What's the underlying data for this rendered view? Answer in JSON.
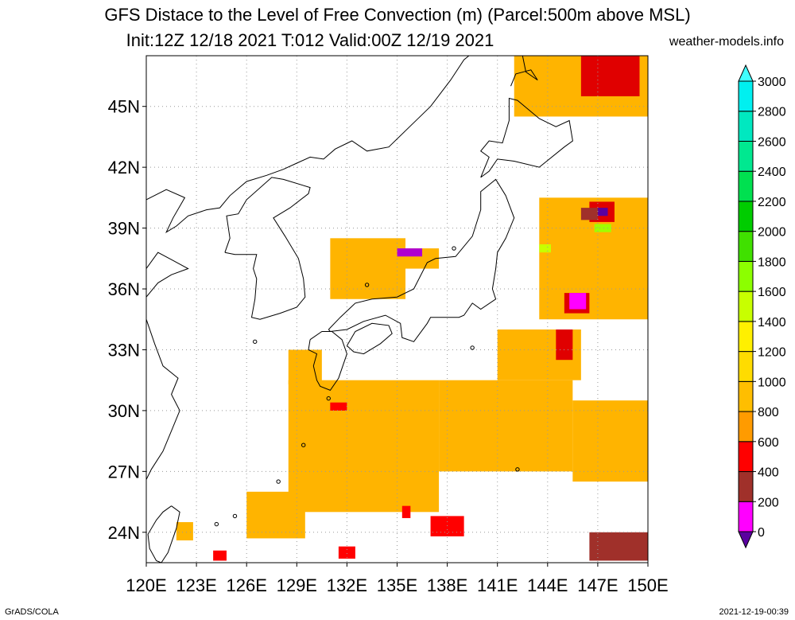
{
  "title": "GFS Distace to the Level of Free Convection (m) (Parcel:500m above MSL)",
  "subtitle": "Init:12Z 12/18 2021 T:012 Valid:00Z 12/19 2021",
  "credit": "weather-models.info",
  "footer_left": "GrADS/COLA",
  "footer_right": "2021-12-19-00:39",
  "map": {
    "lon_range": [
      120,
      150
    ],
    "lat_range": [
      22.5,
      47.5
    ],
    "lat_labels": [
      {
        "lat": 45,
        "label": "45N"
      },
      {
        "lat": 42,
        "label": "42N"
      },
      {
        "lat": 39,
        "label": "39N"
      },
      {
        "lat": 36,
        "label": "36N"
      },
      {
        "lat": 33,
        "label": "33N"
      },
      {
        "lat": 30,
        "label": "30N"
      },
      {
        "lat": 27,
        "label": "27N"
      },
      {
        "lat": 24,
        "label": "24N"
      }
    ],
    "lon_labels": [
      {
        "lon": 120,
        "label": "120E"
      },
      {
        "lon": 123,
        "label": "123E"
      },
      {
        "lon": 126,
        "label": "126E"
      },
      {
        "lon": 129,
        "label": "129E"
      },
      {
        "lon": 132,
        "label": "132E"
      },
      {
        "lon": 135,
        "label": "135E"
      },
      {
        "lon": 138,
        "label": "138E"
      },
      {
        "lon": 141,
        "label": "141E"
      },
      {
        "lon": 144,
        "label": "144E"
      },
      {
        "lon": 147,
        "label": "147E"
      },
      {
        "lon": 150,
        "label": "150E"
      }
    ]
  },
  "colorbar": {
    "levels": [
      "0",
      "200",
      "400",
      "600",
      "800",
      "1000",
      "1200",
      "1400",
      "1600",
      "1800",
      "2000",
      "2200",
      "2400",
      "2600",
      "2800",
      "3000"
    ],
    "colors": [
      "#5a00a0",
      "#ff00ff",
      "#a0302a",
      "#ff0000",
      "#ff9b00",
      "#ffbe00",
      "#ffdc00",
      "#fff000",
      "#c8ff00",
      "#8cff00",
      "#40e000",
      "#00cc00",
      "#00e050",
      "#00e890",
      "#00e8c0",
      "#00f0f0",
      "#40ffff"
    ]
  },
  "data_regions": [
    {
      "name": "south-band-west",
      "lon": [
        128.5,
        137.5
      ],
      "lat": [
        25.0,
        31.5
      ],
      "color": "#ffb400"
    },
    {
      "name": "south-band-central",
      "lon": [
        137.5,
        145.5
      ],
      "lat": [
        27.0,
        31.5
      ],
      "color": "#ffb400"
    },
    {
      "name": "south-band-east",
      "lon": [
        145.5,
        150.0
      ],
      "lat": [
        26.5,
        30.5
      ],
      "color": "#ffb400"
    },
    {
      "name": "south-band-tail",
      "lon": [
        126.0,
        129.5
      ],
      "lat": [
        23.7,
        26.0
      ],
      "color": "#ffb400"
    },
    {
      "name": "east-of-japan",
      "lon": [
        141.0,
        146.0
      ],
      "lat": [
        31.5,
        34.0
      ],
      "color": "#ffb400"
    },
    {
      "name": "east-pacific-north",
      "lon": [
        143.5,
        150.0
      ],
      "lat": [
        34.5,
        40.5
      ],
      "color": "#ffb400"
    },
    {
      "name": "sea-of-japan",
      "lon": [
        131.0,
        135.5
      ],
      "lat": [
        35.5,
        38.5
      ],
      "color": "#ffb400"
    },
    {
      "name": "sea-of-japan-east",
      "lon": [
        135.0,
        137.5
      ],
      "lat": [
        37.0,
        38.0
      ],
      "color": "#ffb400"
    },
    {
      "name": "kyushu-south",
      "lon": [
        128.5,
        130.5
      ],
      "lat": [
        31.3,
        33.0
      ],
      "color": "#ffb400"
    },
    {
      "name": "taiwan-east",
      "lon": [
        121.8,
        122.8
      ],
      "lat": [
        23.6,
        24.5
      ],
      "color": "#ffb400"
    },
    {
      "name": "red-core-1",
      "lon": [
        137.0,
        139.0
      ],
      "lat": [
        23.8,
        24.8
      ],
      "color": "#ff0000"
    },
    {
      "name": "red-core-2",
      "lon": [
        135.3,
        135.8
      ],
      "lat": [
        24.7,
        25.3
      ],
      "color": "#ff0000"
    },
    {
      "name": "red-core-3",
      "lon": [
        144.5,
        145.5
      ],
      "lat": [
        32.5,
        34.0
      ],
      "color": "#e00000"
    },
    {
      "name": "red-core-4",
      "lon": [
        146.5,
        148.0
      ],
      "lat": [
        39.3,
        40.3
      ],
      "color": "#e00000"
    },
    {
      "name": "red-core-5",
      "lon": [
        145.0,
        146.5
      ],
      "lat": [
        34.8,
        35.8
      ],
      "color": "#e00000"
    },
    {
      "name": "red-core-6",
      "lon": [
        131.5,
        132.5
      ],
      "lat": [
        22.7,
        23.3
      ],
      "color": "#ff0000"
    },
    {
      "name": "red-core-7",
      "lon": [
        124.0,
        124.8
      ],
      "lat": [
        22.6,
        23.1
      ],
      "color": "#ff0000"
    },
    {
      "name": "red-core-8",
      "lon": [
        146.5,
        148.0
      ],
      "lat": [
        46.0,
        46.7
      ],
      "color": "#ff0000"
    },
    {
      "name": "red-core-9",
      "lon": [
        131.0,
        132.0
      ],
      "lat": [
        30.0,
        30.4
      ],
      "color": "#ff0000"
    },
    {
      "name": "brown-core-1",
      "lon": [
        146.5,
        150.0
      ],
      "lat": [
        22.6,
        24.0
      ],
      "color": "#a0302a"
    },
    {
      "name": "brown-core-2",
      "lon": [
        146.0,
        147.0
      ],
      "lat": [
        39.4,
        40.0
      ],
      "color": "#a0302a"
    },
    {
      "name": "magenta-core-1",
      "lon": [
        145.3,
        146.3
      ],
      "lat": [
        35.0,
        35.8
      ],
      "color": "#ff00ff"
    },
    {
      "name": "magenta-core-2",
      "lon": [
        135.0,
        136.5
      ],
      "lat": [
        37.6,
        38.0
      ],
      "color": "#b000d0"
    },
    {
      "name": "purple-core-1",
      "lon": [
        147.0,
        147.6
      ],
      "lat": [
        39.6,
        40.0
      ],
      "color": "#5a00a0"
    },
    {
      "name": "green-core-1",
      "lon": [
        146.8,
        147.8
      ],
      "lat": [
        38.8,
        39.2
      ],
      "color": "#a0ff00"
    },
    {
      "name": "green-core-2",
      "lon": [
        143.5,
        144.2
      ],
      "lat": [
        37.8,
        38.2
      ],
      "color": "#c8ff00"
    },
    {
      "name": "hokkaido-coast-1",
      "lon": [
        142.0,
        150.0
      ],
      "lat": [
        44.5,
        47.5
      ],
      "color": "#ffb400"
    },
    {
      "name": "hokkaido-coast-red",
      "lon": [
        146.0,
        149.5
      ],
      "lat": [
        45.5,
        47.5
      ],
      "color": "#e00000"
    }
  ],
  "coastlines": [
    {
      "name": "honshu",
      "points": [
        [
          130.9,
          34.0
        ],
        [
          131.6,
          34.6
        ],
        [
          132.5,
          35.3
        ],
        [
          133.5,
          35.5
        ],
        [
          135.0,
          35.6
        ],
        [
          136.0,
          36.0
        ],
        [
          136.8,
          37.3
        ],
        [
          137.3,
          37.5
        ],
        [
          138.5,
          37.6
        ],
        [
          139.5,
          38.6
        ],
        [
          140.0,
          39.9
        ],
        [
          140.0,
          40.8
        ],
        [
          140.9,
          41.4
        ],
        [
          141.5,
          40.6
        ],
        [
          142.0,
          39.5
        ],
        [
          141.5,
          38.5
        ],
        [
          141.0,
          37.8
        ],
        [
          140.9,
          37.0
        ],
        [
          140.7,
          36.0
        ],
        [
          140.9,
          35.5
        ],
        [
          140.0,
          35.0
        ],
        [
          139.5,
          35.3
        ],
        [
          139.0,
          34.7
        ],
        [
          138.7,
          34.6
        ],
        [
          138.0,
          34.6
        ],
        [
          137.0,
          34.6
        ],
        [
          136.8,
          34.3
        ],
        [
          136.0,
          33.4
        ],
        [
          135.3,
          33.6
        ],
        [
          135.2,
          34.3
        ],
        [
          134.3,
          34.7
        ],
        [
          133.0,
          34.4
        ],
        [
          132.0,
          34.0
        ],
        [
          131.0,
          33.9
        ],
        [
          130.9,
          34.0
        ]
      ]
    },
    {
      "name": "hokkaido",
      "points": [
        [
          140.0,
          41.5
        ],
        [
          140.5,
          42.5
        ],
        [
          140.0,
          42.8
        ],
        [
          140.5,
          43.3
        ],
        [
          141.3,
          43.2
        ],
        [
          141.7,
          44.3
        ],
        [
          141.7,
          45.4
        ],
        [
          142.2,
          45.3
        ],
        [
          143.5,
          44.4
        ],
        [
          144.5,
          44.0
        ],
        [
          145.3,
          44.3
        ],
        [
          145.5,
          43.3
        ],
        [
          145.0,
          43.0
        ],
        [
          143.5,
          42.0
        ],
        [
          142.0,
          42.3
        ],
        [
          141.0,
          42.4
        ],
        [
          140.5,
          41.8
        ],
        [
          140.0,
          41.5
        ]
      ]
    },
    {
      "name": "kyushu",
      "points": [
        [
          129.8,
          33.5
        ],
        [
          130.5,
          33.9
        ],
        [
          131.1,
          33.9
        ],
        [
          131.7,
          33.5
        ],
        [
          132.0,
          32.8
        ],
        [
          131.5,
          31.6
        ],
        [
          131.0,
          31.0
        ],
        [
          130.4,
          31.2
        ],
        [
          130.2,
          31.5
        ],
        [
          130.0,
          32.2
        ],
        [
          130.2,
          32.8
        ],
        [
          129.7,
          33.0
        ],
        [
          129.8,
          33.5
        ]
      ]
    },
    {
      "name": "shikoku",
      "points": [
        [
          132.0,
          33.2
        ],
        [
          132.5,
          33.9
        ],
        [
          133.5,
          34.3
        ],
        [
          134.5,
          34.2
        ],
        [
          134.7,
          33.8
        ],
        [
          134.0,
          33.3
        ],
        [
          133.0,
          32.8
        ],
        [
          132.4,
          32.9
        ],
        [
          132.0,
          33.2
        ]
      ]
    },
    {
      "name": "korea",
      "points": [
        [
          124.7,
          37.8
        ],
        [
          125.0,
          38.5
        ],
        [
          124.8,
          39.6
        ],
        [
          125.5,
          39.7
        ],
        [
          126.0,
          40.4
        ],
        [
          127.5,
          41.5
        ],
        [
          128.2,
          41.4
        ],
        [
          129.8,
          41.0
        ],
        [
          129.7,
          40.7
        ],
        [
          128.6,
          40.0
        ],
        [
          127.6,
          39.5
        ],
        [
          128.3,
          38.6
        ],
        [
          129.1,
          37.5
        ],
        [
          129.4,
          36.5
        ],
        [
          129.5,
          35.6
        ],
        [
          129.0,
          35.1
        ],
        [
          128.0,
          34.8
        ],
        [
          126.8,
          34.5
        ],
        [
          126.3,
          34.6
        ],
        [
          126.5,
          35.5
        ],
        [
          126.6,
          36.5
        ],
        [
          126.4,
          37.0
        ],
        [
          126.6,
          37.7
        ],
        [
          126.0,
          37.7
        ],
        [
          125.3,
          37.7
        ],
        [
          124.7,
          37.8
        ]
      ]
    },
    {
      "name": "china-coast",
      "points": [
        [
          120.0,
          40.4
        ],
        [
          121.2,
          40.9
        ],
        [
          122.3,
          40.5
        ],
        [
          121.6,
          39.5
        ],
        [
          121.2,
          38.8
        ],
        [
          121.8,
          39.1
        ],
        [
          122.5,
          39.6
        ],
        [
          123.6,
          39.9
        ],
        [
          124.4,
          40.0
        ],
        [
          125.0,
          40.6
        ],
        [
          126.0,
          41.3
        ],
        [
          127.2,
          41.6
        ],
        [
          128.2,
          41.9
        ],
        [
          129.0,
          42.2
        ],
        [
          129.8,
          42.5
        ],
        [
          130.6,
          42.4
        ],
        [
          131.3,
          42.9
        ],
        [
          132.3,
          43.3
        ],
        [
          133.2,
          42.8
        ],
        [
          134.5,
          43.0
        ],
        [
          135.5,
          43.8
        ],
        [
          137.0,
          45.0
        ],
        [
          138.2,
          46.3
        ],
        [
          139.0,
          47.3
        ],
        [
          139.3,
          47.5
        ]
      ]
    },
    {
      "name": "shandong",
      "points": [
        [
          120.0,
          37.0
        ],
        [
          120.7,
          37.8
        ],
        [
          121.6,
          37.4
        ],
        [
          122.5,
          37.0
        ],
        [
          121.5,
          36.7
        ],
        [
          120.7,
          36.3
        ],
        [
          120.0,
          35.6
        ]
      ]
    },
    {
      "name": "china-east",
      "points": [
        [
          120.0,
          34.5
        ],
        [
          120.5,
          33.3
        ],
        [
          121.0,
          32.2
        ],
        [
          121.9,
          31.6
        ],
        [
          121.5,
          30.8
        ],
        [
          122.0,
          30.0
        ],
        [
          121.5,
          29.0
        ],
        [
          121.0,
          28.0
        ],
        [
          120.3,
          27.1
        ],
        [
          120.0,
          26.6
        ]
      ]
    },
    {
      "name": "taiwan",
      "points": [
        [
          121.5,
          25.3
        ],
        [
          122.0,
          25.0
        ],
        [
          121.8,
          24.2
        ],
        [
          121.3,
          23.0
        ],
        [
          120.9,
          22.5
        ],
        [
          120.6,
          22.6
        ],
        [
          120.2,
          23.2
        ],
        [
          120.1,
          23.9
        ],
        [
          120.6,
          24.6
        ],
        [
          121.0,
          25.0
        ],
        [
          121.5,
          25.3
        ]
      ]
    },
    {
      "name": "sakhalin",
      "points": [
        [
          141.8,
          46.0
        ],
        [
          142.1,
          46.6
        ],
        [
          143.0,
          46.8
        ],
        [
          143.4,
          46.3
        ],
        [
          142.7,
          46.7
        ],
        [
          142.5,
          47.5
        ]
      ]
    }
  ],
  "islands": [
    {
      "name": "okinawa",
      "lon": 127.9,
      "lat": 26.5
    },
    {
      "name": "amami",
      "lon": 129.4,
      "lat": 28.3
    },
    {
      "name": "tanegashima",
      "lon": 130.9,
      "lat": 30.6
    },
    {
      "name": "jeju",
      "lon": 126.5,
      "lat": 33.4
    },
    {
      "name": "oki",
      "lon": 133.2,
      "lat": 36.2
    },
    {
      "name": "sado",
      "lon": 138.4,
      "lat": 38.0
    },
    {
      "name": "izu",
      "lon": 139.5,
      "lat": 33.1
    },
    {
      "name": "miyako",
      "lon": 125.3,
      "lat": 24.8
    },
    {
      "name": "ishigaki",
      "lon": 124.2,
      "lat": 24.4
    },
    {
      "name": "ogasawara",
      "lon": 142.2,
      "lat": 27.1
    }
  ]
}
